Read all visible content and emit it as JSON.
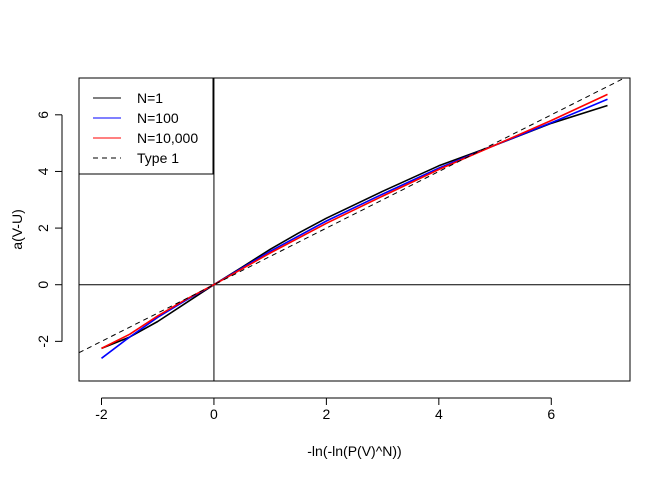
{
  "chart_data": {
    "type": "line",
    "title": "",
    "xlabel": "-ln(-ln(P(V)^N))",
    "ylabel": "a(V-U)",
    "xlim": [
      -2.4,
      7.4
    ],
    "ylim": [
      -3.4,
      7.3
    ],
    "x_ticks": [
      -2,
      0,
      2,
      4,
      6
    ],
    "y_ticks": [
      -2,
      0,
      2,
      4,
      6
    ],
    "x_tick_labels": [
      "-2",
      "0",
      "2",
      "4",
      "6"
    ],
    "y_tick_labels": [
      "-2",
      "0",
      "2",
      "4",
      "6"
    ],
    "reference_lines": {
      "vertical_x": 0,
      "horizontal_y": 0
    },
    "legend_position": "top-left",
    "series": [
      {
        "name": "N=1",
        "color": "#000000",
        "style": "solid",
        "x": [
          -2,
          -1.5,
          -1,
          -0.5,
          0,
          0.5,
          1,
          1.5,
          2,
          3,
          4,
          5,
          6,
          7
        ],
        "y": [
          -2.25,
          -1.85,
          -1.3,
          -0.65,
          0,
          0.62,
          1.25,
          1.82,
          2.35,
          3.3,
          4.2,
          4.93,
          5.7,
          6.33
        ]
      },
      {
        "name": "N=100",
        "color": "#0000ff",
        "style": "solid",
        "x": [
          -2,
          -1.5,
          -1,
          -0.5,
          0,
          1,
          2,
          3,
          4,
          5,
          6,
          7
        ],
        "y": [
          -2.6,
          -1.85,
          -1.15,
          -0.55,
          0,
          1.18,
          2.25,
          3.2,
          4.12,
          4.93,
          5.72,
          6.55
        ]
      },
      {
        "name": "N=10,000",
        "color": "#ff0000",
        "style": "solid",
        "x": [
          -2,
          -1.5,
          -1,
          -0.5,
          0,
          1,
          2,
          3,
          4,
          5,
          6,
          7
        ],
        "y": [
          -2.25,
          -1.75,
          -1.1,
          -0.52,
          0,
          1.12,
          2.17,
          3.13,
          4.07,
          4.93,
          5.8,
          6.72
        ]
      },
      {
        "name": "Type 1",
        "color": "#000000",
        "style": "dashed",
        "x": [
          -2.4,
          7.4
        ],
        "y": [
          -2.4,
          7.4
        ]
      }
    ]
  }
}
